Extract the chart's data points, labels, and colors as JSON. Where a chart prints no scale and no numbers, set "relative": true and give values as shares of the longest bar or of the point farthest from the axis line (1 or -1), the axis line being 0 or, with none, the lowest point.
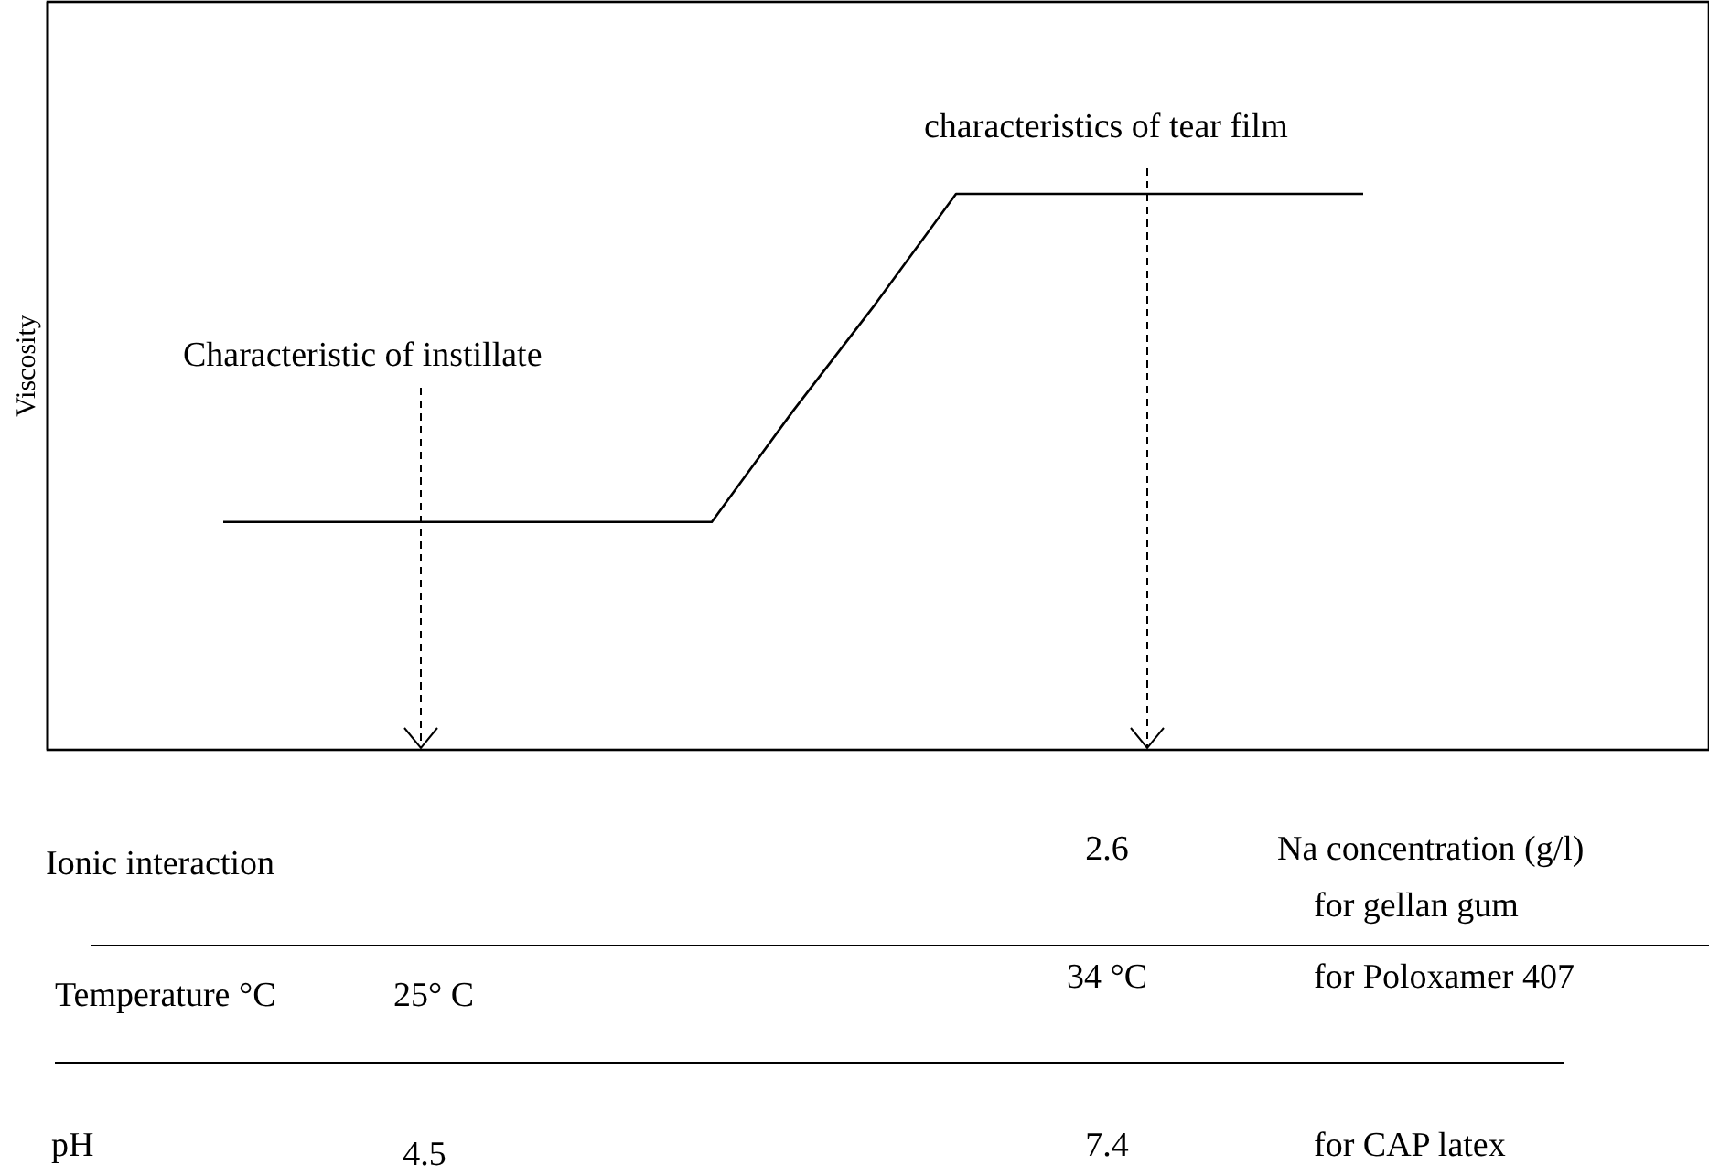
{
  "chart_data": {
    "type": "line",
    "relative": true,
    "categories": [
      null,
      null,
      null,
      null,
      null,
      null,
      null,
      null,
      null,
      null,
      null,
      null,
      null,
      null,
      null
    ],
    "series": [
      {
        "color": "#000000",
        "values": [
          0.41,
          0.41,
          0.41,
          0.41,
          0.41,
          0.41,
          0.41,
          0.61,
          0.8,
          1,
          1,
          1,
          1,
          1,
          1
        ]
      }
    ],
    "annotations": [
      "Characteristic of instillate",
      "characteristics of tear film",
      "Ionic interaction",
      "2.6",
      "Na concentration (g/l)",
      "for gellan gum",
      "Temperature °C",
      "25° C",
      "34 °C",
      "for Poloxamer 407",
      "pH",
      "4.5",
      "7.4",
      "for CAP latex",
      "Viscosity"
    ]
  }
}
